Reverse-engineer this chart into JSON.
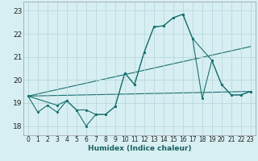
{
  "xlabel": "Humidex (Indice chaleur)",
  "background_color": "#d7eff2",
  "grid_color": "#b8d8dc",
  "line_color": "#1a7070",
  "x_ticks": [
    0,
    1,
    2,
    3,
    4,
    5,
    6,
    7,
    8,
    9,
    10,
    11,
    12,
    13,
    14,
    15,
    16,
    17,
    18,
    19,
    20,
    21,
    22,
    23
  ],
  "y_ticks": [
    18,
    19,
    20,
    21,
    22,
    23
  ],
  "ylim": [
    17.6,
    23.4
  ],
  "xlim": [
    -0.5,
    23.5
  ],
  "series1_x": [
    0,
    1,
    2,
    3,
    4,
    5,
    6,
    7,
    8,
    9,
    10,
    11,
    12,
    13,
    14,
    15,
    16,
    17,
    18,
    19,
    20,
    21,
    22,
    23
  ],
  "series1_y": [
    19.3,
    18.6,
    18.9,
    18.6,
    19.1,
    18.7,
    18.0,
    18.5,
    18.5,
    18.85,
    20.3,
    19.8,
    21.2,
    22.3,
    22.35,
    22.7,
    22.85,
    21.8,
    19.2,
    20.85,
    19.8,
    19.35,
    19.35,
    19.5
  ],
  "series2_x": [
    0,
    3,
    4,
    5,
    6,
    7,
    8,
    9,
    10,
    11,
    12,
    13,
    14,
    15,
    16,
    17,
    19,
    20,
    21,
    22,
    23
  ],
  "series2_y": [
    19.3,
    18.9,
    19.1,
    18.7,
    18.7,
    18.5,
    18.5,
    18.85,
    20.3,
    19.8,
    21.2,
    22.3,
    22.35,
    22.7,
    22.85,
    21.8,
    20.85,
    19.8,
    19.35,
    19.35,
    19.5
  ],
  "line1_x": [
    0,
    23
  ],
  "line1_y": [
    19.3,
    19.5
  ],
  "line2_x": [
    0,
    23
  ],
  "line2_y": [
    19.3,
    21.45
  ]
}
